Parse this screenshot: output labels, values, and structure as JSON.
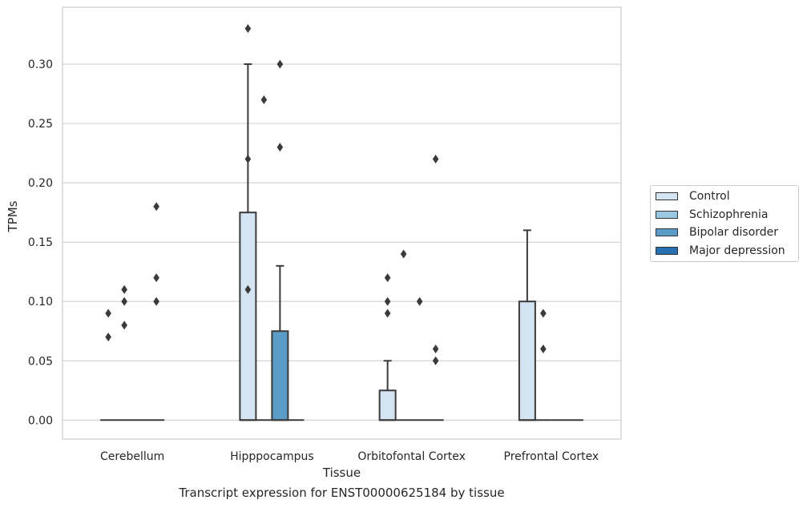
{
  "chart_data": {
    "type": "box",
    "title": "",
    "caption": "Transcript expression for ENST00000625184 by tissue",
    "xlabel": "Tissue",
    "ylabel": "TPMs",
    "ylim": [
      -0.016,
      0.348
    ],
    "yticks": [
      "0.00",
      "0.05",
      "0.10",
      "0.15",
      "0.20",
      "0.25",
      "0.30"
    ],
    "grid": true,
    "legend_position": "right",
    "categories": [
      "Cerebellum",
      "Hipppocampus",
      "Orbitofontal Cortex",
      "Prefrontal Cortex"
    ],
    "series": [
      {
        "name": "Control",
        "color": "#d5e4f3",
        "boxes": [
          {
            "q1": 0,
            "median": 0,
            "q3": 0,
            "whisker_low": 0,
            "whisker_high": 0,
            "outliers": [
              0.07,
              0.09
            ]
          },
          {
            "q1": 0,
            "median": 0,
            "q3": 0.175,
            "whisker_low": 0,
            "whisker_high": 0.3,
            "outliers": [
              0.11,
              0.22,
              0.33
            ]
          },
          {
            "q1": 0,
            "median": 0,
            "q3": 0.025,
            "whisker_low": 0,
            "whisker_high": 0.05,
            "outliers": [
              0.09,
              0.1,
              0.12
            ]
          },
          {
            "q1": 0,
            "median": 0,
            "q3": 0.1,
            "whisker_low": 0,
            "whisker_high": 0.16,
            "outliers": []
          }
        ]
      },
      {
        "name": "Schizophrenia",
        "color": "#9ac8e1",
        "boxes": [
          {
            "q1": 0,
            "median": 0,
            "q3": 0,
            "whisker_low": 0,
            "whisker_high": 0,
            "outliers": [
              0.08,
              0.1,
              0.11
            ]
          },
          {
            "q1": 0,
            "median": 0,
            "q3": 0,
            "whisker_low": 0,
            "whisker_high": 0,
            "outliers": [
              0.27
            ]
          },
          {
            "q1": 0,
            "median": 0,
            "q3": 0,
            "whisker_low": 0,
            "whisker_high": 0,
            "outliers": [
              0.14
            ]
          },
          {
            "q1": 0,
            "median": 0,
            "q3": 0,
            "whisker_low": 0,
            "whisker_high": 0,
            "outliers": [
              0.06,
              0.09
            ]
          }
        ]
      },
      {
        "name": "Bipolar disorder",
        "color": "#5a9bc7",
        "boxes": [
          {
            "q1": 0,
            "median": 0,
            "q3": 0,
            "whisker_low": 0,
            "whisker_high": 0,
            "outliers": []
          },
          {
            "q1": 0,
            "median": 0,
            "q3": 0.075,
            "whisker_low": 0,
            "whisker_high": 0.13,
            "outliers": [
              0.23,
              0.3
            ]
          },
          {
            "q1": 0,
            "median": 0,
            "q3": 0,
            "whisker_low": 0,
            "whisker_high": 0,
            "outliers": [
              0.1
            ]
          },
          {
            "q1": 0,
            "median": 0,
            "q3": 0,
            "whisker_low": 0,
            "whisker_high": 0,
            "outliers": []
          }
        ]
      },
      {
        "name": "Major depression",
        "color": "#2870b1",
        "boxes": [
          {
            "q1": 0,
            "median": 0,
            "q3": 0,
            "whisker_low": 0,
            "whisker_high": 0,
            "outliers": [
              0.1,
              0.12,
              0.18
            ]
          },
          {
            "q1": 0,
            "median": 0,
            "q3": 0,
            "whisker_low": 0,
            "whisker_high": 0,
            "outliers": []
          },
          {
            "q1": 0,
            "median": 0,
            "q3": 0,
            "whisker_low": 0,
            "whisker_high": 0,
            "outliers": [
              0.05,
              0.06,
              0.22
            ]
          },
          {
            "q1": 0,
            "median": 0,
            "q3": 0,
            "whisker_low": 0,
            "whisker_high": 0,
            "outliers": []
          }
        ]
      }
    ]
  }
}
